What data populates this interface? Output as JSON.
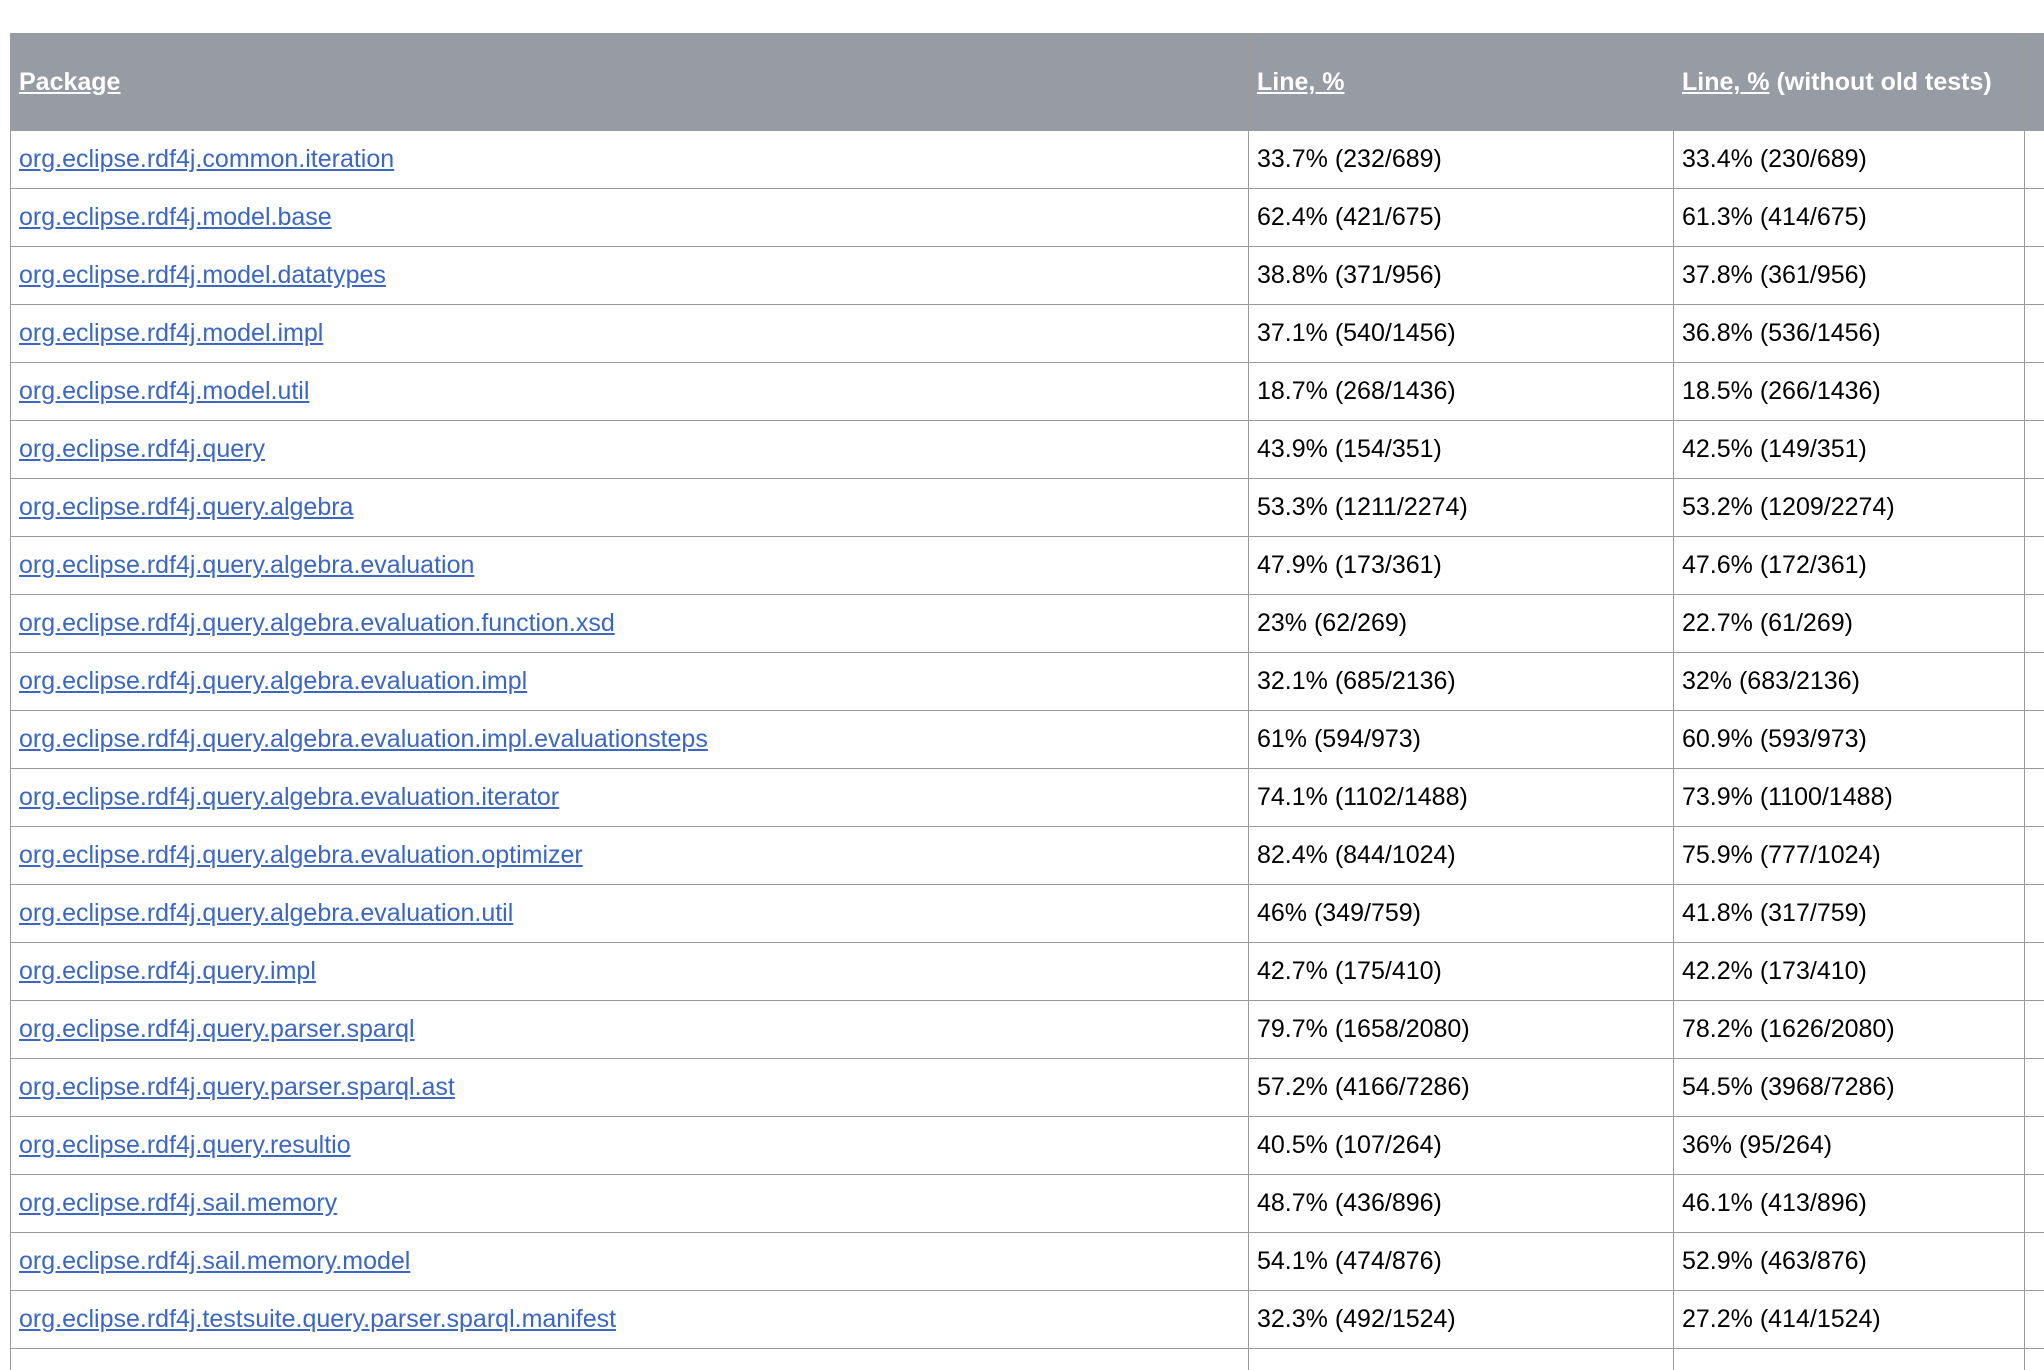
{
  "table": {
    "columns": [
      {
        "label": "Package"
      },
      {
        "label": "Line, %"
      },
      {
        "link_label": "Line, %",
        "suffix": " (without old tests)"
      }
    ],
    "rows": [
      {
        "package": "org.eclipse.rdf4j.common.iteration",
        "line_pct": "33.7% (232/689)",
        "line_pct_no_old": "33.4% (230/689)"
      },
      {
        "package": "org.eclipse.rdf4j.model.base",
        "line_pct": "62.4% (421/675)",
        "line_pct_no_old": "61.3% (414/675)"
      },
      {
        "package": "org.eclipse.rdf4j.model.datatypes",
        "line_pct": "38.8% (371/956)",
        "line_pct_no_old": "37.8% (361/956)"
      },
      {
        "package": "org.eclipse.rdf4j.model.impl",
        "line_pct": "37.1% (540/1456)",
        "line_pct_no_old": "36.8% (536/1456)"
      },
      {
        "package": "org.eclipse.rdf4j.model.util",
        "line_pct": "18.7% (268/1436)",
        "line_pct_no_old": "18.5% (266/1436)"
      },
      {
        "package": "org.eclipse.rdf4j.query",
        "line_pct": "43.9% (154/351)",
        "line_pct_no_old": "42.5% (149/351)"
      },
      {
        "package": "org.eclipse.rdf4j.query.algebra",
        "line_pct": "53.3% (1211/2274)",
        "line_pct_no_old": "53.2% (1209/2274)"
      },
      {
        "package": "org.eclipse.rdf4j.query.algebra.evaluation",
        "line_pct": "47.9% (173/361)",
        "line_pct_no_old": "47.6% (172/361)"
      },
      {
        "package": "org.eclipse.rdf4j.query.algebra.evaluation.function.xsd",
        "line_pct": "23% (62/269)",
        "line_pct_no_old": "22.7% (61/269)"
      },
      {
        "package": "org.eclipse.rdf4j.query.algebra.evaluation.impl",
        "line_pct": "32.1% (685/2136)",
        "line_pct_no_old": "32% (683/2136)"
      },
      {
        "package": "org.eclipse.rdf4j.query.algebra.evaluation.impl.evaluationsteps",
        "line_pct": "61% (594/973)",
        "line_pct_no_old": "60.9% (593/973)"
      },
      {
        "package": "org.eclipse.rdf4j.query.algebra.evaluation.iterator",
        "line_pct": "74.1% (1102/1488)",
        "line_pct_no_old": "73.9% (1100/1488)"
      },
      {
        "package": "org.eclipse.rdf4j.query.algebra.evaluation.optimizer",
        "line_pct": "82.4% (844/1024)",
        "line_pct_no_old": "75.9% (777/1024)"
      },
      {
        "package": "org.eclipse.rdf4j.query.algebra.evaluation.util",
        "line_pct": "46% (349/759)",
        "line_pct_no_old": "41.8% (317/759)"
      },
      {
        "package": "org.eclipse.rdf4j.query.impl",
        "line_pct": "42.7% (175/410)",
        "line_pct_no_old": "42.2% (173/410)"
      },
      {
        "package": "org.eclipse.rdf4j.query.parser.sparql",
        "line_pct": "79.7% (1658/2080)",
        "line_pct_no_old": "78.2% (1626/2080)"
      },
      {
        "package": "org.eclipse.rdf4j.query.parser.sparql.ast",
        "line_pct": "57.2% (4166/7286)",
        "line_pct_no_old": "54.5% (3968/7286)"
      },
      {
        "package": "org.eclipse.rdf4j.query.resultio",
        "line_pct": "40.5% (107/264)",
        "line_pct_no_old": "36% (95/264)"
      },
      {
        "package": "org.eclipse.rdf4j.sail.memory",
        "line_pct": "48.7% (436/896)",
        "line_pct_no_old": "46.1% (413/896)"
      },
      {
        "package": "org.eclipse.rdf4j.sail.memory.model",
        "line_pct": "54.1% (474/876)",
        "line_pct_no_old": "52.9% (463/876)"
      },
      {
        "package": "org.eclipse.rdf4j.testsuite.query.parser.sparql.manifest",
        "line_pct": "32.3% (492/1524)",
        "line_pct_no_old": "27.2% (414/1524)"
      }
    ]
  },
  "colors": {
    "header_bg": "#979BA3",
    "header_text": "#FFFFFF",
    "link": "#3B66C4",
    "border": "#9B9B9B",
    "cell_text": "#000000"
  }
}
